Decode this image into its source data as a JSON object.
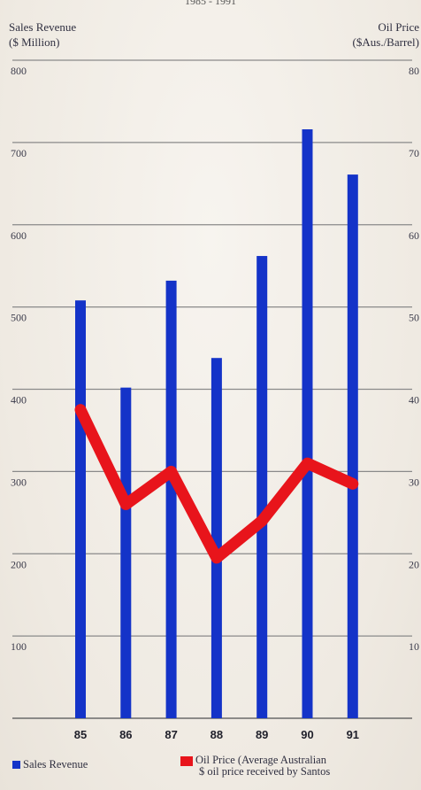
{
  "chart_data": {
    "type": "bar",
    "title_fragment": "1985 - 1991",
    "left_axis_title_line1": "Sales Revenue",
    "left_axis_title_line2": "($ Million)",
    "right_axis_title_line1": "Oil Price",
    "right_axis_title_line2": "($Aus./Barrel)",
    "categories": [
      "85",
      "86",
      "87",
      "88",
      "89",
      "90",
      "91"
    ],
    "left_ylim": [
      0,
      800
    ],
    "right_ylim": [
      0,
      80
    ],
    "left_ticks": [
      "100",
      "200",
      "300",
      "400",
      "500",
      "600",
      "700",
      "800"
    ],
    "right_ticks": [
      "10",
      "20",
      "30",
      "40",
      "50",
      "60",
      "70",
      "80"
    ],
    "grid": true,
    "legend_position": "bottom",
    "series": [
      {
        "name": "Sales Revenue",
        "type": "bar",
        "axis": "left",
        "color": "#1433c8",
        "values": [
          508,
          402,
          532,
          438,
          562,
          716,
          661
        ]
      },
      {
        "name": "Oil Price (Average Australian $ oil price received by Santos)",
        "type": "line",
        "axis": "right",
        "color": "#e8141b",
        "values": [
          37.5,
          26,
          30,
          19.5,
          24,
          31,
          28.5
        ]
      }
    ]
  },
  "legend": {
    "sales_label": "Sales Revenue",
    "oil_label_line1": "Oil Price (Average Australian",
    "oil_label_line2": "$ oil price received by Santos"
  }
}
